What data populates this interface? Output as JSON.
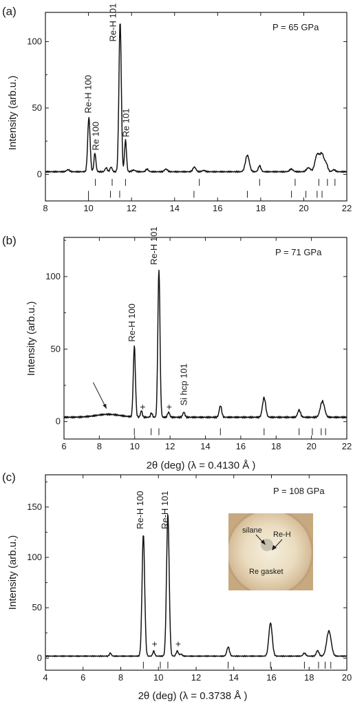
{
  "colors": {
    "line": "#111111",
    "axis": "#1a1a1a",
    "background": "#ffffff"
  },
  "chart_data": [
    {
      "type": "line",
      "panel_label": "(a)",
      "pressure_label": "P = 65 GPa",
      "xlabel": "",
      "ylabel": "Intensity (arb.u.)",
      "xlim": [
        8,
        22
      ],
      "ylim": [
        -20,
        122
      ],
      "xticks": [
        8,
        10,
        12,
        14,
        16,
        18,
        20,
        22
      ],
      "yticks": [
        0,
        50,
        100
      ],
      "grid": false,
      "baseline": 2,
      "noise": 0.6,
      "peaks": [
        {
          "x": 9.05,
          "y": 1.5,
          "w": 0.07
        },
        {
          "x": 10.02,
          "y": 41,
          "w": 0.055
        },
        {
          "x": 10.3,
          "y": 14,
          "w": 0.045
        },
        {
          "x": 10.82,
          "y": 3,
          "w": 0.05
        },
        {
          "x": 11.05,
          "y": 3.5,
          "w": 0.05
        },
        {
          "x": 11.47,
          "y": 113,
          "w": 0.055
        },
        {
          "x": 11.72,
          "y": 24,
          "w": 0.045
        },
        {
          "x": 12.1,
          "y": 1.2,
          "w": 0.08
        },
        {
          "x": 12.72,
          "y": 2,
          "w": 0.06
        },
        {
          "x": 13.6,
          "y": 2,
          "w": 0.07
        },
        {
          "x": 14.92,
          "y": 3.5,
          "w": 0.07
        },
        {
          "x": 15.35,
          "y": 1,
          "w": 0.07
        },
        {
          "x": 17.38,
          "y": 12.5,
          "w": 0.09
        },
        {
          "x": 17.95,
          "y": 4.5,
          "w": 0.06
        },
        {
          "x": 19.42,
          "y": 2,
          "w": 0.08
        },
        {
          "x": 20.22,
          "y": 3,
          "w": 0.09
        },
        {
          "x": 20.62,
          "y": 12.5,
          "w": 0.1
        },
        {
          "x": 20.85,
          "y": 13,
          "w": 0.1
        },
        {
          "x": 21.05,
          "y": 5,
          "w": 0.07
        },
        {
          "x": 21.4,
          "y": 1.5,
          "w": 0.07
        }
      ],
      "annotations": [
        {
          "text": "Re-H 100",
          "x": 10.0,
          "y": 46
        },
        {
          "text": "Re 100",
          "x": 10.35,
          "y": 18
        },
        {
          "text": "Re-H 101",
          "x": 11.15,
          "y": 100
        },
        {
          "text": "Re 101",
          "x": 11.75,
          "y": 28
        }
      ],
      "reference_rows": [
        {
          "y": -6,
          "positions": [
            10.32,
            11.1,
            11.72,
            15.15,
            17.95,
            19.6,
            20.7,
            21.1,
            21.45
          ]
        },
        {
          "y": -15,
          "positions": [
            10.0,
            11.02,
            11.45,
            14.9,
            17.38,
            19.43,
            20.1,
            20.62,
            20.85
          ]
        }
      ]
    },
    {
      "type": "line",
      "panel_label": "(b)",
      "pressure_label": "P = 71 GPa",
      "xlabel": "2θ (deg) (λ = 0.4130 Å )",
      "ylabel": "Intensity (arb.u.)",
      "xlim": [
        6,
        22
      ],
      "ylim": [
        -12,
        127
      ],
      "xticks": [
        6,
        8,
        10,
        12,
        14,
        16,
        18,
        20,
        22
      ],
      "yticks": [
        0,
        50,
        100
      ],
      "grid": false,
      "baseline": 3,
      "noise": 0.7,
      "peaks": [
        {
          "x": 8.5,
          "y": 2,
          "w": 0.7
        },
        {
          "x": 9.98,
          "y": 49,
          "w": 0.06
        },
        {
          "x": 10.38,
          "y": 4.5,
          "w": 0.05
        },
        {
          "x": 10.95,
          "y": 3,
          "w": 0.05
        },
        {
          "x": 11.37,
          "y": 102,
          "w": 0.06
        },
        {
          "x": 11.92,
          "y": 3.5,
          "w": 0.06
        },
        {
          "x": 12.78,
          "y": 3.5,
          "w": 0.06
        },
        {
          "x": 14.85,
          "y": 8,
          "w": 0.07
        },
        {
          "x": 17.32,
          "y": 13.5,
          "w": 0.09
        },
        {
          "x": 19.3,
          "y": 5,
          "w": 0.08
        },
        {
          "x": 20.62,
          "y": 11,
          "w": 0.12
        }
      ],
      "annotations": [
        {
          "text": "Re-H 100",
          "x": 9.85,
          "y": 55
        },
        {
          "text": "Re-H 101",
          "x": 11.1,
          "y": 108
        },
        {
          "text": "+",
          "x": 10.45,
          "y": 8
        },
        {
          "text": "+",
          "x": 11.95,
          "y": 8
        },
        {
          "text": "Si hcp 101",
          "x": 12.8,
          "y": 11
        }
      ],
      "arrow": {
        "from_x": 7.65,
        "from_y": 27,
        "to_x": 8.4,
        "to_y": 9
      },
      "reference_rows": [
        {
          "y": -7,
          "positions": [
            9.98,
            10.93,
            11.37,
            14.85,
            17.32,
            19.3,
            20.05,
            20.55,
            20.8
          ]
        }
      ]
    },
    {
      "type": "line",
      "panel_label": "(c)",
      "pressure_label": "P = 108 GPa",
      "xlabel": "2θ (deg) (λ = 0.3738 Å )",
      "ylabel": "Intensity (arb.u.)",
      "xlim": [
        4,
        20
      ],
      "ylim": [
        -12,
        182
      ],
      "xticks": [
        4,
        6,
        8,
        10,
        12,
        14,
        16,
        18,
        20
      ],
      "yticks": [
        0,
        50,
        100,
        150
      ],
      "grid": false,
      "baseline": 2,
      "noise": 0.6,
      "peaks": [
        {
          "x": 7.45,
          "y": 3,
          "w": 0.05
        },
        {
          "x": 9.2,
          "y": 121,
          "w": 0.07
        },
        {
          "x": 9.75,
          "y": 5,
          "w": 0.05
        },
        {
          "x": 10.5,
          "y": 141,
          "w": 0.07
        },
        {
          "x": 11.0,
          "y": 5,
          "w": 0.06
        },
        {
          "x": 11.2,
          "y": 2,
          "w": 0.06
        },
        {
          "x": 13.7,
          "y": 9,
          "w": 0.07
        },
        {
          "x": 15.95,
          "y": 33,
          "w": 0.09
        },
        {
          "x": 17.75,
          "y": 3,
          "w": 0.07
        },
        {
          "x": 18.45,
          "y": 5.5,
          "w": 0.07
        },
        {
          "x": 19.05,
          "y": 25,
          "w": 0.12
        }
      ],
      "annotations": [
        {
          "text": "Re-H 100",
          "x": 9.05,
          "y": 128
        },
        {
          "text": "Re-H 101",
          "x": 10.35,
          "y": 128
        },
        {
          "text": "+",
          "x": 9.8,
          "y": 11
        },
        {
          "text": "+",
          "x": 11.05,
          "y": 11
        }
      ],
      "reference_rows": [
        {
          "y": -7,
          "positions": [
            9.2,
            10.1,
            10.5,
            13.7,
            15.95,
            17.75,
            18.5,
            18.85,
            19.15
          ]
        }
      ],
      "inset": {
        "labels": [
          "silane",
          "Re-H",
          "Re gasket"
        ],
        "colors": {
          "background": "#c9ad86",
          "disk": "#e9dcc2",
          "rim": "#a8896a",
          "center": "#b9b3a2"
        }
      }
    }
  ]
}
